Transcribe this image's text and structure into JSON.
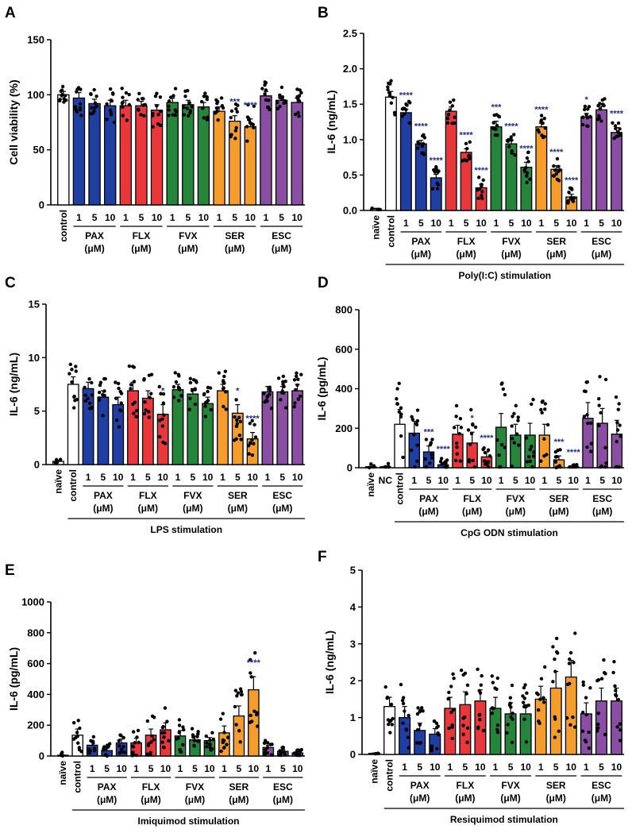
{
  "figure": {
    "background": "#ffffff"
  },
  "palette": {
    "control": "#ffffff",
    "PAX": "#1f3fa3",
    "FLX": "#e8383c",
    "FVX": "#25853a",
    "SER": "#f49c2c",
    "ESC": "#8a4fa3",
    "naive": "#ffffff",
    "NC": "#ffffff",
    "star": "#1f2f8f"
  },
  "chart_data": [
    {
      "type": "bar",
      "panel": "A",
      "ylabel": "Cell viability (%)",
      "ylim": [
        0,
        150
      ],
      "yticks": [
        0,
        50,
        100,
        150
      ],
      "categories": [
        "control",
        "1",
        "5",
        "10",
        "1",
        "5",
        "10",
        "1",
        "5",
        "10",
        "1",
        "5",
        "10",
        "1",
        "5",
        "10"
      ],
      "groups_of_categories": [
        "control",
        "PAX",
        "PAX",
        "PAX",
        "FLX",
        "FLX",
        "FLX",
        "FVX",
        "FVX",
        "FVX",
        "SER",
        "SER",
        "SER",
        "ESC",
        "ESC",
        "ESC"
      ],
      "values": [
        100,
        97,
        92,
        90,
        90,
        90,
        86,
        93,
        91,
        89,
        85,
        76,
        71,
        99,
        95,
        93
      ],
      "errors": [
        3,
        5,
        4,
        5,
        5,
        4,
        5,
        4,
        4,
        4,
        4,
        5,
        7,
        4,
        4,
        4
      ],
      "stars": [
        "",
        "",
        "",
        "",
        "",
        "",
        "",
        "",
        "",
        "",
        "",
        "***",
        "****",
        "",
        "",
        ""
      ],
      "dose_groups": [
        {
          "label": "PAX",
          "unit": "(μM)"
        },
        {
          "label": "FLX",
          "unit": "(μM)"
        },
        {
          "label": "FVX",
          "unit": "(μM)"
        },
        {
          "label": "SER",
          "unit": "(μM)"
        },
        {
          "label": "ESC",
          "unit": "(μM)"
        }
      ],
      "stimulation": ""
    },
    {
      "type": "bar",
      "panel": "B",
      "ylabel": "IL-6 (ng/mL)",
      "ylim": [
        0,
        2.5
      ],
      "yticks": [
        0.0,
        0.5,
        1.0,
        1.5,
        2.0,
        2.5
      ],
      "ytick_labels": [
        "0.0",
        "0.5",
        "1.0",
        "1.5",
        "2.0",
        "2.5"
      ],
      "categories": [
        "naïve",
        "control",
        "1",
        "5",
        "10",
        "1",
        "5",
        "10",
        "1",
        "5",
        "10",
        "1",
        "5",
        "10",
        "1",
        "5",
        "10"
      ],
      "groups_of_categories": [
        "naive",
        "control",
        "PAX",
        "PAX",
        "PAX",
        "FLX",
        "FLX",
        "FLX",
        "FVX",
        "FVX",
        "FVX",
        "SER",
        "SER",
        "SER",
        "ESC",
        "ESC",
        "ESC"
      ],
      "values": [
        0.02,
        1.6,
        1.38,
        0.94,
        0.46,
        1.4,
        0.82,
        0.32,
        1.18,
        0.94,
        0.61,
        1.18,
        0.58,
        0.19,
        1.32,
        1.42,
        1.1
      ],
      "errors": [
        0.01,
        0.08,
        0.05,
        0.05,
        0.05,
        0.06,
        0.05,
        0.05,
        0.08,
        0.05,
        0.07,
        0.05,
        0.05,
        0.04,
        0.05,
        0.05,
        0.07
      ],
      "stars": [
        "",
        "",
        "****",
        "****",
        "****",
        "",
        "****",
        "****",
        "***",
        "****",
        "****",
        "****",
        "****",
        "****",
        "*",
        "",
        "****"
      ],
      "dose_groups": [
        {
          "label": "PAX",
          "unit": "(μM)"
        },
        {
          "label": "FLX",
          "unit": "(μM)"
        },
        {
          "label": "FVX",
          "unit": "(μM)"
        },
        {
          "label": "SER",
          "unit": "(μM)"
        },
        {
          "label": "ESC",
          "unit": "(μM)"
        }
      ],
      "stimulation": "Poly(I:C) stimulation"
    },
    {
      "type": "bar",
      "panel": "C",
      "ylabel": "IL-6 (ng/mL)",
      "ylim": [
        0,
        15
      ],
      "yticks": [
        0,
        5,
        10,
        15
      ],
      "categories": [
        "naïve",
        "control",
        "1",
        "5",
        "10",
        "1",
        "5",
        "10",
        "1",
        "5",
        "10",
        "1",
        "5",
        "10",
        "1",
        "5",
        "10"
      ],
      "groups_of_categories": [
        "naive",
        "control",
        "PAX",
        "PAX",
        "PAX",
        "FLX",
        "FLX",
        "FLX",
        "FVX",
        "FVX",
        "FVX",
        "SER",
        "SER",
        "SER",
        "ESC",
        "ESC",
        "ESC"
      ],
      "values": [
        0.3,
        7.5,
        7.1,
        6.3,
        5.6,
        6.9,
        6.2,
        4.7,
        7.0,
        6.6,
        5.7,
        6.9,
        4.8,
        2.4,
        6.8,
        6.8,
        6.9
      ],
      "errors": [
        0.1,
        0.7,
        0.6,
        0.6,
        0.7,
        0.8,
        0.7,
        0.9,
        0.5,
        0.5,
        0.6,
        0.6,
        0.8,
        0.6,
        0.5,
        0.5,
        0.6
      ],
      "stars": [
        "",
        "",
        "",
        "",
        "",
        "",
        "",
        "*",
        "",
        "",
        "",
        "",
        "*",
        "****",
        "",
        "",
        ""
      ],
      "dose_groups": [
        {
          "label": "PAX",
          "unit": "(μM)"
        },
        {
          "label": "FLX",
          "unit": "(μM)"
        },
        {
          "label": "FVX",
          "unit": "(μM)"
        },
        {
          "label": "SER",
          "unit": "(μM)"
        },
        {
          "label": "ESC",
          "unit": "(μM)"
        }
      ],
      "stimulation": "LPS stimulation"
    },
    {
      "type": "bar",
      "panel": "D",
      "ylabel": "IL-6 (pg/mL)",
      "ylim": [
        0,
        800
      ],
      "yticks": [
        0,
        200,
        400,
        600,
        800
      ],
      "categories": [
        "naïve",
        "NC",
        "control",
        "1",
        "5",
        "10",
        "1",
        "5",
        "10",
        "1",
        "5",
        "10",
        "1",
        "5",
        "10",
        "1",
        "5",
        "10"
      ],
      "groups_of_categories": [
        "naive",
        "NC",
        "control",
        "PAX",
        "PAX",
        "PAX",
        "FLX",
        "FLX",
        "FLX",
        "FVX",
        "FVX",
        "FVX",
        "SER",
        "SER",
        "SER",
        "ESC",
        "ESC",
        "ESC"
      ],
      "values": [
        5,
        5,
        220,
        175,
        80,
        15,
        170,
        125,
        55,
        205,
        165,
        165,
        165,
        40,
        5,
        250,
        225,
        170
      ],
      "errors": [
        2,
        2,
        75,
        60,
        30,
        10,
        45,
        55,
        25,
        70,
        55,
        60,
        55,
        20,
        3,
        80,
        75,
        70
      ],
      "stars": [
        "",
        "",
        "",
        "",
        "***",
        "****",
        "",
        "*",
        "****",
        "",
        "",
        "",
        "",
        "***",
        "****",
        "",
        "",
        ""
      ],
      "dose_groups": [
        {
          "label": "PAX",
          "unit": "(μM)"
        },
        {
          "label": "FLX",
          "unit": "(μM)"
        },
        {
          "label": "FVX",
          "unit": "(μM)"
        },
        {
          "label": "SER",
          "unit": "(μM)"
        },
        {
          "label": "ESC",
          "unit": "(μM)"
        }
      ],
      "stimulation": "CpG ODN stimulation"
    },
    {
      "type": "bar",
      "panel": "E",
      "ylabel": "IL-6 (pg/mL)",
      "ylim": [
        0,
        1000
      ],
      "yticks": [
        0,
        200,
        400,
        600,
        800,
        1000
      ],
      "categories": [
        "naïve",
        "control",
        "1",
        "5",
        "10",
        "1",
        "5",
        "10",
        "1",
        "5",
        "10",
        "1",
        "5",
        "10",
        "1",
        "5",
        "10"
      ],
      "groups_of_categories": [
        "naive",
        "control",
        "PAX",
        "PAX",
        "PAX",
        "FLX",
        "FLX",
        "FLX",
        "FVX",
        "FVX",
        "FVX",
        "SER",
        "SER",
        "SER",
        "ESC",
        "ESC",
        "ESC"
      ],
      "values": [
        5,
        135,
        70,
        35,
        85,
        85,
        135,
        170,
        130,
        105,
        100,
        150,
        260,
        430,
        55,
        30,
        20
      ],
      "errors": [
        2,
        40,
        20,
        15,
        25,
        30,
        40,
        45,
        35,
        25,
        20,
        45,
        65,
        85,
        15,
        10,
        8
      ],
      "stars": [
        "",
        "",
        "",
        "",
        "",
        "",
        "",
        "",
        "",
        "",
        "",
        "",
        "",
        "****",
        "",
        "",
        ""
      ],
      "dose_groups": [
        {
          "label": "PAX",
          "unit": "(μM)"
        },
        {
          "label": "FLX",
          "unit": "(μM)"
        },
        {
          "label": "FVX",
          "unit": "(μM)"
        },
        {
          "label": "SER",
          "unit": "(μM)"
        },
        {
          "label": "ESC",
          "unit": "(μM)"
        }
      ],
      "stimulation": "Imiquimod stimulation"
    },
    {
      "type": "bar",
      "panel": "F",
      "ylabel": "IL-6 (ng/mL)",
      "ylim": [
        0,
        5
      ],
      "yticks": [
        0,
        1,
        2,
        3,
        4,
        5
      ],
      "categories": [
        "naïve",
        "control",
        "1",
        "5",
        "10",
        "1",
        "5",
        "10",
        "1",
        "5",
        "10",
        "1",
        "5",
        "10",
        "1",
        "5",
        "10"
      ],
      "groups_of_categories": [
        "naive",
        "control",
        "PAX",
        "PAX",
        "PAX",
        "FLX",
        "FLX",
        "FLX",
        "FVX",
        "FVX",
        "FVX",
        "SER",
        "SER",
        "SER",
        "ESC",
        "ESC",
        "ESC"
      ],
      "values": [
        0.03,
        1.3,
        1.0,
        0.65,
        0.55,
        1.25,
        1.35,
        1.45,
        1.25,
        1.1,
        1.1,
        1.5,
        1.8,
        2.1,
        1.1,
        1.45,
        1.45
      ],
      "errors": [
        0.01,
        0.25,
        0.3,
        0.2,
        0.15,
        0.3,
        0.35,
        0.3,
        0.3,
        0.3,
        0.25,
        0.35,
        0.45,
        0.45,
        0.3,
        0.35,
        0.35
      ],
      "stars": [
        "",
        "",
        "",
        "",
        "",
        "",
        "",
        "",
        "",
        "",
        "",
        "",
        "",
        "",
        "",
        "",
        ""
      ],
      "dose_groups": [
        {
          "label": "PAX",
          "unit": "(μM)"
        },
        {
          "label": "FLX",
          "unit": "(μM)"
        },
        {
          "label": "FVX",
          "unit": "(μM)"
        },
        {
          "label": "SER",
          "unit": "(μM)"
        },
        {
          "label": "ESC",
          "unit": "(μM)"
        }
      ],
      "stimulation": "Resiquimod stimulation"
    }
  ]
}
